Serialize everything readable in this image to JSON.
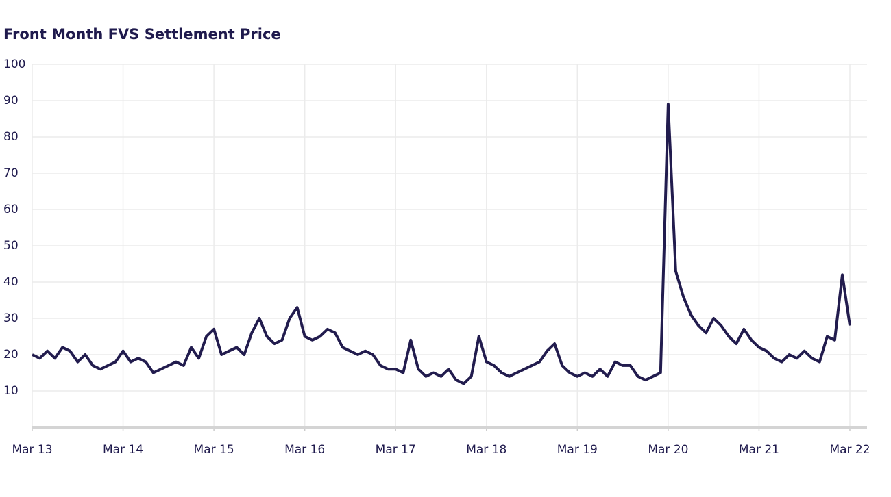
{
  "chart_data": {
    "type": "line",
    "title": "Front Month FVS Settlement Price",
    "x": [
      "Mar 13",
      "Apr 13",
      "May 13",
      "Jun 13",
      "Jul 13",
      "Aug 13",
      "Sep 13",
      "Oct 13",
      "Nov 13",
      "Dec 13",
      "Jan 14",
      "Feb 14",
      "Mar 14",
      "Apr 14",
      "May 14",
      "Jun 14",
      "Jul 14",
      "Aug 14",
      "Sep 14",
      "Oct 14",
      "Nov 14",
      "Dec 14",
      "Jan 15",
      "Feb 15",
      "Mar 15",
      "Apr 15",
      "May 15",
      "Jun 15",
      "Jul 15",
      "Aug 15",
      "Sep 15",
      "Oct 15",
      "Nov 15",
      "Dec 15",
      "Jan 16",
      "Feb 16",
      "Mar 16",
      "Apr 16",
      "May 16",
      "Jun 16",
      "Jul 16",
      "Aug 16",
      "Sep 16",
      "Oct 16",
      "Nov 16",
      "Dec 16",
      "Jan 17",
      "Feb 17",
      "Mar 17",
      "Apr 17",
      "May 17",
      "Jun 17",
      "Jul 17",
      "Aug 17",
      "Sep 17",
      "Oct 17",
      "Nov 17",
      "Dec 17",
      "Jan 18",
      "Feb 18",
      "Mar 18",
      "Apr 18",
      "May 18",
      "Jun 18",
      "Jul 18",
      "Aug 18",
      "Sep 18",
      "Oct 18",
      "Nov 18",
      "Dec 18",
      "Jan 19",
      "Feb 19",
      "Mar 19",
      "Apr 19",
      "May 19",
      "Jun 19",
      "Jul 19",
      "Aug 19",
      "Sep 19",
      "Oct 19",
      "Nov 19",
      "Dec 19",
      "Jan 20",
      "Feb 20",
      "Mar 20",
      "Apr 20",
      "May 20",
      "Jun 20",
      "Jul 20",
      "Aug 20",
      "Sep 20",
      "Oct 20",
      "Nov 20",
      "Dec 20",
      "Jan 21",
      "Feb 21",
      "Mar 21",
      "Apr 21",
      "May 21",
      "Jun 21",
      "Jul 21",
      "Aug 21",
      "Sep 21",
      "Oct 21",
      "Nov 21",
      "Dec 21",
      "Jan 22",
      "Feb 22",
      "Mar 22"
    ],
    "series": [
      {
        "color": "#221c4e",
        "values": [
          20,
          19,
          21,
          19,
          22,
          21,
          18,
          20,
          17,
          16,
          17,
          18,
          21,
          18,
          19,
          18,
          15,
          16,
          17,
          18,
          17,
          22,
          19,
          25,
          27,
          20,
          21,
          22,
          20,
          26,
          30,
          25,
          23,
          24,
          30,
          33,
          25,
          24,
          25,
          27,
          26,
          22,
          21,
          20,
          21,
          20,
          17,
          16,
          16,
          15,
          24,
          16,
          14,
          15,
          14,
          16,
          13,
          12,
          14,
          25,
          18,
          17,
          15,
          14,
          15,
          16,
          17,
          18,
          21,
          23,
          17,
          15,
          14,
          15,
          14,
          16,
          14,
          18,
          17,
          17,
          14,
          13,
          14,
          15,
          89,
          43,
          36,
          31,
          28,
          26,
          30,
          28,
          25,
          23,
          27,
          24,
          22,
          21,
          19,
          18,
          20,
          19,
          21,
          19,
          18,
          25,
          24,
          42,
          28
        ]
      }
    ],
    "ylim": [
      0,
      100
    ],
    "yticks": [
      10,
      20,
      30,
      40,
      50,
      60,
      70,
      80,
      90,
      100
    ],
    "grid": true
  }
}
